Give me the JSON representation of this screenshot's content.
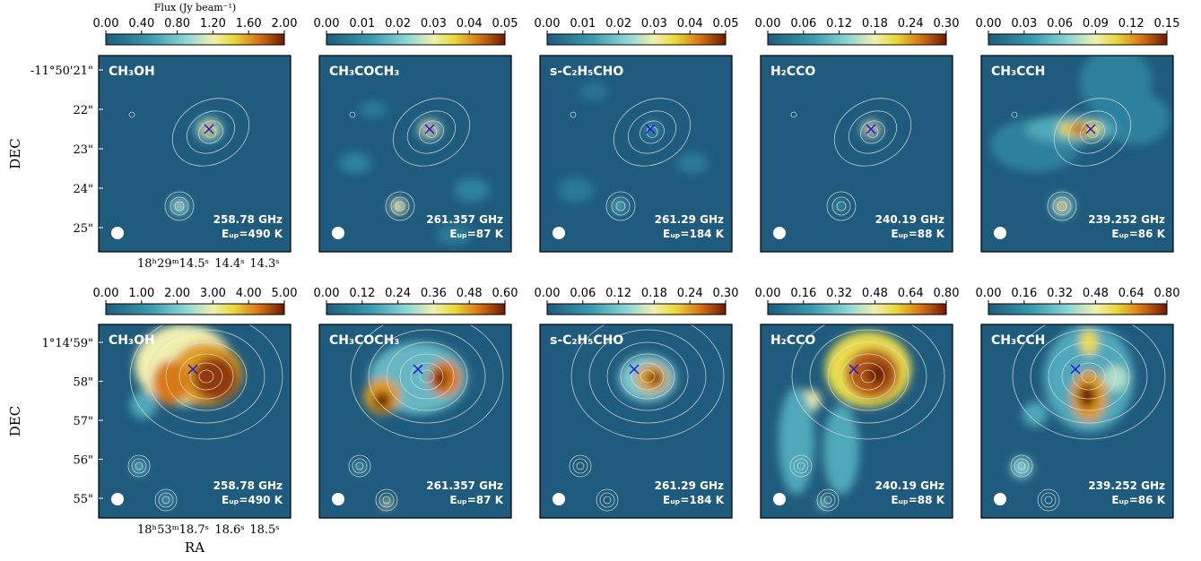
{
  "chart_data": [
    {
      "type": "image",
      "title": "CH₃OH",
      "frequency": "258.78 GHz",
      "energy": "Eᵤₚ=490 K",
      "clim": [
        0,
        2
      ],
      "cticks": [
        {
          "value": 0,
          "label": "0.00"
        },
        {
          "value": 0.4,
          "label": "0.40"
        },
        {
          "value": 0.8,
          "label": "0.80"
        },
        {
          "value": 1.2,
          "label": "1.20"
        },
        {
          "value": 1.6,
          "label": "1.60"
        },
        {
          "value": 2,
          "label": "2.00"
        }
      ],
      "colorbar_label": "Flux (Jy beam⁻¹)",
      "ylabel": "DEC",
      "yticklabels": [
        "-11°50'21\"",
        "22\"",
        "23\"",
        "24\"",
        "25\""
      ],
      "xticklabels": [
        "18ʰ29ᵐ14.5ˢ",
        "14.4ˢ",
        "14.3ˢ"
      ]
    },
    {
      "type": "image",
      "title": "CH₃COCH₃",
      "frequency": "261.357 GHz",
      "energy": "Eᵤₚ=87 K",
      "clim": [
        0,
        0.05
      ],
      "cticks": [
        {
          "value": 0,
          "label": "0.00"
        },
        {
          "value": 0.01,
          "label": "0.01"
        },
        {
          "value": 0.02,
          "label": "0.02"
        },
        {
          "value": 0.03,
          "label": "0.03"
        },
        {
          "value": 0.04,
          "label": "0.04"
        },
        {
          "value": 0.05,
          "label": "0.05"
        }
      ]
    },
    {
      "type": "image",
      "title": "s-C₂H₅CHO",
      "frequency": "261.29 GHz",
      "energy": "Eᵤₚ=184 K",
      "clim": [
        0,
        0.05
      ],
      "cticks": [
        {
          "value": 0,
          "label": "0.00"
        },
        {
          "value": 0.01,
          "label": "0.01"
        },
        {
          "value": 0.02,
          "label": "0.02"
        },
        {
          "value": 0.03,
          "label": "0.03"
        },
        {
          "value": 0.04,
          "label": "0.04"
        },
        {
          "value": 0.05,
          "label": "0.05"
        }
      ]
    },
    {
      "type": "image",
      "title": "H₂CCO",
      "frequency": "240.19 GHz",
      "energy": "Eᵤₚ=88 K",
      "clim": [
        0,
        0.3
      ],
      "cticks": [
        {
          "value": 0,
          "label": "0.00"
        },
        {
          "value": 0.06,
          "label": "0.06"
        },
        {
          "value": 0.12,
          "label": "0.12"
        },
        {
          "value": 0.18,
          "label": "0.18"
        },
        {
          "value": 0.24,
          "label": "0.24"
        },
        {
          "value": 0.3,
          "label": "0.30"
        }
      ]
    },
    {
      "type": "image",
      "title": "CH₃CCH",
      "frequency": "239.252 GHz",
      "energy": "Eᵤₚ=86 K",
      "clim": [
        0,
        0.15
      ],
      "cticks": [
        {
          "value": 0,
          "label": "0.00"
        },
        {
          "value": 0.03,
          "label": "0.03"
        },
        {
          "value": 0.06,
          "label": "0.06"
        },
        {
          "value": 0.09,
          "label": "0.09"
        },
        {
          "value": 0.12,
          "label": "0.12"
        },
        {
          "value": 0.15,
          "label": "0.15"
        }
      ]
    },
    {
      "type": "image",
      "title": "CH₃OH",
      "frequency": "258.78 GHz",
      "energy": "Eᵤₚ=490 K",
      "clim": [
        0,
        5
      ],
      "cticks": [
        {
          "value": 0,
          "label": "0.00"
        },
        {
          "value": 1,
          "label": "1.00"
        },
        {
          "value": 2,
          "label": "2.00"
        },
        {
          "value": 3,
          "label": "3.00"
        },
        {
          "value": 4,
          "label": "4.00"
        },
        {
          "value": 5,
          "label": "5.00"
        }
      ],
      "ylabel": "DEC",
      "xlabel": "RA",
      "yticklabels": [
        "1°14'59\"",
        "58\"",
        "57\"",
        "56\"",
        "55\""
      ],
      "xticklabels": [
        "18ʰ53ᵐ18.7ˢ",
        "18.6ˢ",
        "18.5ˢ"
      ]
    },
    {
      "type": "image",
      "title": "CH₃COCH₃",
      "frequency": "261.357 GHz",
      "energy": "Eᵤₚ=87 K",
      "clim": [
        0,
        0.6
      ],
      "cticks": [
        {
          "value": 0,
          "label": "0.00"
        },
        {
          "value": 0.12,
          "label": "0.12"
        },
        {
          "value": 0.24,
          "label": "0.24"
        },
        {
          "value": 0.36,
          "label": "0.36"
        },
        {
          "value": 0.48,
          "label": "0.48"
        },
        {
          "value": 0.6,
          "label": "0.60"
        }
      ]
    },
    {
      "type": "image",
      "title": "s-C₂H₅CHO",
      "frequency": "261.29 GHz",
      "energy": "Eᵤₚ=184 K",
      "clim": [
        0,
        0.3
      ],
      "cticks": [
        {
          "value": 0,
          "label": "0.00"
        },
        {
          "value": 0.06,
          "label": "0.06"
        },
        {
          "value": 0.12,
          "label": "0.12"
        },
        {
          "value": 0.18,
          "label": "0.18"
        },
        {
          "value": 0.24,
          "label": "0.24"
        },
        {
          "value": 0.3,
          "label": "0.30"
        }
      ]
    },
    {
      "type": "image",
      "title": "H₂CCO",
      "frequency": "240.19 GHz",
      "energy": "Eᵤₚ=88 K",
      "clim": [
        0,
        0.8
      ],
      "cticks": [
        {
          "value": 0,
          "label": "0.00"
        },
        {
          "value": 0.16,
          "label": "0.16"
        },
        {
          "value": 0.32,
          "label": "0.32"
        },
        {
          "value": 0.48,
          "label": "0.48"
        },
        {
          "value": 0.64,
          "label": "0.64"
        },
        {
          "value": 0.8,
          "label": "0.80"
        }
      ]
    },
    {
      "type": "image",
      "title": "CH₃CCH",
      "frequency": "239.252 GHz",
      "energy": "Eᵤₚ=86 K",
      "clim": [
        0,
        0.8
      ],
      "cticks": [
        {
          "value": 0,
          "label": "0.00"
        },
        {
          "value": 0.16,
          "label": "0.16"
        },
        {
          "value": 0.32,
          "label": "0.32"
        },
        {
          "value": 0.48,
          "label": "0.48"
        },
        {
          "value": 0.64,
          "label": "0.64"
        },
        {
          "value": 0.8,
          "label": "0.80"
        }
      ]
    }
  ]
}
